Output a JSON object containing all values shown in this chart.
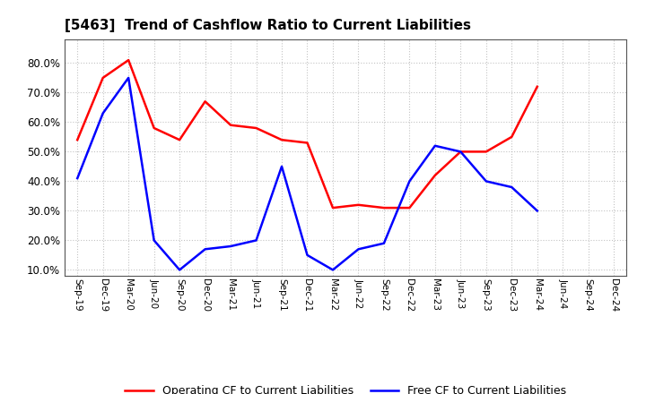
{
  "title": "[5463]  Trend of Cashflow Ratio to Current Liabilities",
  "x_labels": [
    "Sep-19",
    "Dec-19",
    "Mar-20",
    "Jun-20",
    "Sep-20",
    "Dec-20",
    "Mar-21",
    "Jun-21",
    "Sep-21",
    "Dec-21",
    "Mar-22",
    "Jun-22",
    "Sep-22",
    "Dec-22",
    "Mar-23",
    "Jun-23",
    "Sep-23",
    "Dec-23",
    "Mar-24",
    "Jun-24",
    "Sep-24",
    "Dec-24"
  ],
  "operating_cf": [
    0.54,
    0.75,
    0.81,
    0.58,
    0.54,
    0.67,
    0.59,
    0.58,
    0.54,
    0.53,
    0.31,
    0.32,
    0.31,
    0.31,
    0.42,
    0.5,
    0.5,
    0.55,
    0.72,
    null,
    null,
    null
  ],
  "free_cf": [
    0.41,
    0.63,
    0.75,
    0.2,
    0.1,
    0.17,
    0.18,
    0.2,
    0.45,
    0.15,
    0.1,
    0.17,
    0.19,
    0.4,
    0.52,
    0.5,
    0.4,
    0.38,
    0.3,
    null,
    null,
    null
  ],
  "operating_cf_color": "#ff0000",
  "free_cf_color": "#0000ff",
  "ylim": [
    0.08,
    0.88
  ],
  "yticks": [
    0.1,
    0.2,
    0.3,
    0.4,
    0.5,
    0.6,
    0.7,
    0.8
  ],
  "legend_labels": [
    "Operating CF to Current Liabilities",
    "Free CF to Current Liabilities"
  ],
  "background_color": "#ffffff",
  "plot_bg_color": "#ffffff",
  "grid_color": "#aaaaaa"
}
